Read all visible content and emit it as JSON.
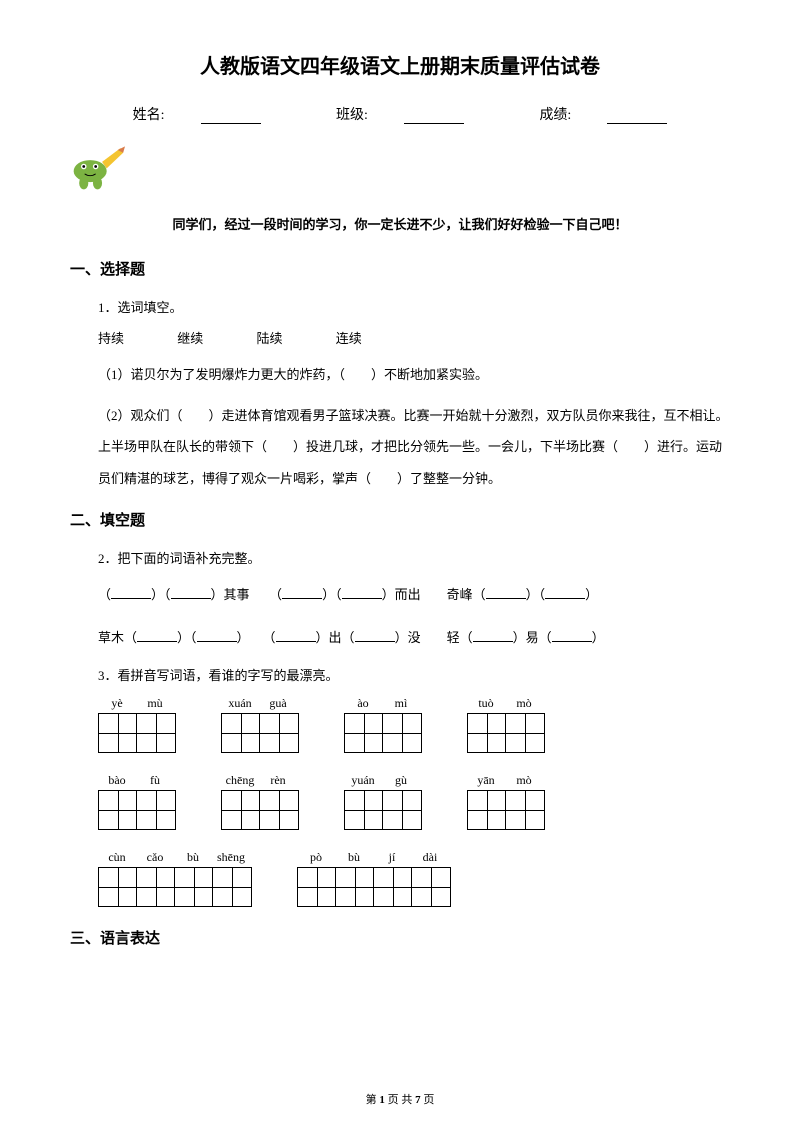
{
  "title": "人教版语文四年级语文上册期末质量评估试卷",
  "info": {
    "name_label": "姓名:",
    "class_label": "班级:",
    "score_label": "成绩:"
  },
  "encourage": "同学们，经过一段时间的学习，你一定长进不少，让我们好好检验一下自己吧！",
  "sections": {
    "s1": "一、选择题",
    "s2": "二、填空题",
    "s3": "三、语言表达"
  },
  "q1": {
    "num": "1．选词填空。",
    "options": [
      "持续",
      "继续",
      "陆续",
      "连续"
    ],
    "p1": "（1）诺贝尔为了发明爆炸力更大的炸药，（　　）不断地加紧实验。",
    "p2": "（2）观众们（　　）走进体育馆观看男子篮球决赛。比赛一开始就十分激烈，双方队员你来我往，互不相让。上半场甲队在队长的带领下（　　）投进几球，才把比分领先一些。一会儿，下半场比赛（　　）进行。运动员们精湛的球艺，博得了观众一片喝彩，掌声（　　）了整整一分钟。"
  },
  "q2": {
    "num": "2．把下面的词语补充完整。",
    "line1_a": "）其事",
    "line1_b": "）而出",
    "line1_c": "奇峰（",
    "line2_a": "草木（",
    "line2_b": "）出（",
    "line2_c": "）没",
    "line2_d": "轻（",
    "line2_e": "）易（"
  },
  "q3": {
    "num": "3．看拼音写词语，看谁的字写的最漂亮。",
    "row1": [
      {
        "pinyin": [
          "yè",
          "mù"
        ],
        "cells": 2
      },
      {
        "pinyin": [
          "xuán",
          "guà"
        ],
        "cells": 2
      },
      {
        "pinyin": [
          "ào",
          "mì"
        ],
        "cells": 2
      },
      {
        "pinyin": [
          "tuò",
          "mò"
        ],
        "cells": 2
      }
    ],
    "row2": [
      {
        "pinyin": [
          "bào",
          "fù"
        ],
        "cells": 2
      },
      {
        "pinyin": [
          "chēng",
          "rèn"
        ],
        "cells": 2
      },
      {
        "pinyin": [
          "yuán",
          "gù"
        ],
        "cells": 2
      },
      {
        "pinyin": [
          "yān",
          "mò"
        ],
        "cells": 2
      }
    ],
    "row3": [
      {
        "pinyin": [
          "cùn",
          "cǎo",
          "bù",
          "shēng"
        ],
        "cells": 4
      },
      {
        "pinyin": [
          "pò",
          "bù",
          "jí",
          "dài"
        ],
        "cells": 4
      }
    ]
  },
  "footer": {
    "prefix": "第 ",
    "page": "1",
    "mid": " 页 共 ",
    "total": "7",
    "suffix": " 页"
  }
}
